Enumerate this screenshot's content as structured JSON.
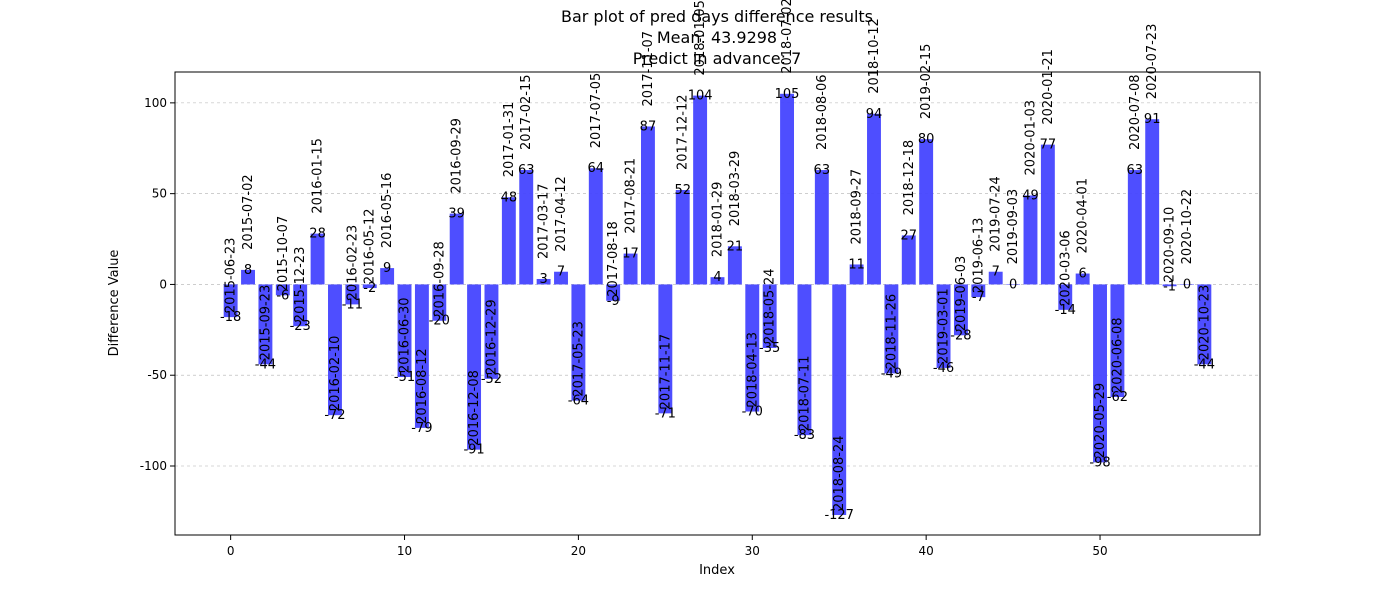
{
  "chart_data": {
    "type": "bar",
    "title": [
      "Bar plot of pred days difference results",
      "Mean: 43.9298",
      "Predict in advance: 7"
    ],
    "xlabel": "Index",
    "ylabel": "Difference Value",
    "xlim": [
      -3.2,
      59.2
    ],
    "ylim": [
      -138,
      117
    ],
    "xticks": [
      0,
      10,
      20,
      30,
      40,
      50
    ],
    "yticks": [
      -100,
      -50,
      0,
      50,
      100
    ],
    "grid": "y",
    "bar_color": "#4444ff",
    "x": [
      0,
      1,
      2,
      3,
      4,
      5,
      6,
      7,
      8,
      9,
      10,
      11,
      12,
      13,
      14,
      15,
      16,
      17,
      18,
      19,
      20,
      21,
      22,
      23,
      24,
      25,
      26,
      27,
      28,
      29,
      30,
      31,
      32,
      33,
      34,
      35,
      36,
      37,
      38,
      39,
      40,
      41,
      42,
      43,
      44,
      45,
      46,
      47,
      48,
      49,
      50,
      51,
      52,
      53,
      54,
      55,
      56
    ],
    "values": [
      -18,
      8,
      -44,
      -6,
      -23,
      28,
      -72,
      -11,
      -2,
      9,
      -51,
      -79,
      -20,
      39,
      -91,
      -52,
      48,
      63,
      3,
      7,
      -64,
      64,
      -9,
      17,
      87,
      -71,
      52,
      104,
      4,
      21,
      -70,
      -35,
      105,
      -83,
      63,
      -127,
      11,
      94,
      -49,
      27,
      80,
      -46,
      -28,
      -7,
      7,
      0,
      49,
      77,
      -14,
      6,
      -98,
      -62,
      63,
      91,
      -1,
      0,
      -44
    ],
    "dates": [
      "2015-06-23",
      "2015-07-02",
      "2015-09-23",
      "2015-10-07",
      "2015-12-23",
      "2016-01-15",
      "2016-02-10",
      "2016-02-23",
      "2016-05-12",
      "2016-05-16",
      "2016-06-30",
      "2016-08-12",
      "2016-09-28",
      "2016-09-29",
      "2016-12-08",
      "2016-12-29",
      "2017-01-31",
      "2017-02-15",
      "2017-03-17",
      "2017-04-12",
      "2017-05-23",
      "2017-07-05",
      "2017-08-18",
      "2017-08-21",
      "2017-11-07",
      "2017-11-17",
      "2017-12-12",
      "2018-01-05",
      "2018-01-29",
      "2018-03-29",
      "2018-04-13",
      "2018-05-24",
      "2018-07-02",
      "2018-07-11",
      "2018-08-06",
      "2018-08-24",
      "2018-09-27",
      "2018-10-12",
      "2018-11-26",
      "2018-12-18",
      "2019-02-15",
      "2019-03-01",
      "2019-06-03",
      "2019-06-13",
      "2019-07-24",
      "2019-09-03",
      "2020-01-03",
      "2020-01-21",
      "2020-03-06",
      "2020-04-01",
      "2020-05-29",
      "2020-06-08",
      "2020-07-08",
      "2020-07-23",
      "2020-09-10",
      "2020-10-22",
      "2020-10-23"
    ]
  }
}
